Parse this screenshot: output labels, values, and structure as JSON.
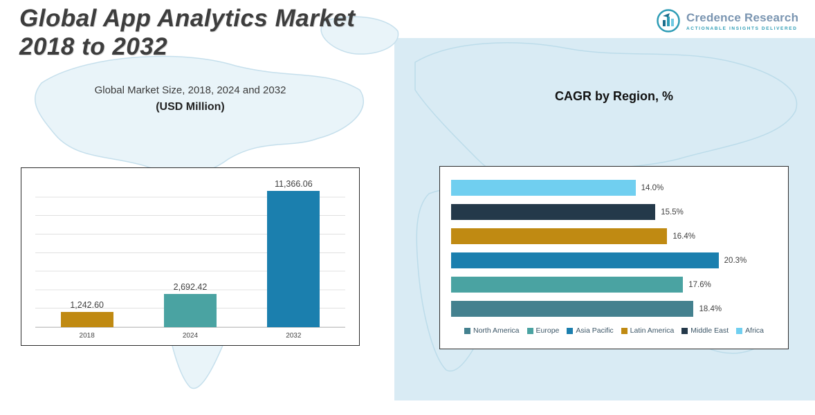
{
  "page": {
    "title_line1": "Global App Analytics Market",
    "title_line2": "2018 to 2032"
  },
  "logo": {
    "name": "Credence Research",
    "tagline": "Actionable Insights Delivered"
  },
  "colors": {
    "gold": "#c08a12",
    "teal": "#4aa3a2",
    "blue": "#1b7fae",
    "dark_navy": "#24394a",
    "steel_teal": "#44818f",
    "light_blue": "#70cff0",
    "map_fill": "#d9ebf4",
    "map_line": "#bcdcea"
  },
  "chart_data": [
    {
      "type": "bar",
      "title": "Global Market Size, 2018, 2024 and 2032",
      "subtitle": "(USD Million)",
      "categories": [
        "2018",
        "2024",
        "2032"
      ],
      "values": [
        1242.6,
        2692.42,
        11366.06
      ],
      "value_labels": [
        "1,242.60",
        "2,692.42",
        "11,366.06"
      ],
      "bar_colors": [
        "#c08a12",
        "#4aa3a2",
        "#1b7fae"
      ],
      "xlabel": "",
      "ylabel": "",
      "ylim": [
        0,
        12000
      ],
      "grid": true,
      "legend_position": "none"
    },
    {
      "type": "bar",
      "orientation": "horizontal",
      "title": "CAGR by Region, %",
      "categories_top_to_bottom": [
        "Africa",
        "Middle East",
        "Latin America",
        "Asia Pacific",
        "Europe",
        "North America"
      ],
      "values_top_to_bottom": [
        14.0,
        15.5,
        16.4,
        20.3,
        17.6,
        18.4
      ],
      "value_labels_top_to_bottom": [
        "14.0%",
        "15.5%",
        "16.4%",
        "20.3%",
        "17.6%",
        "18.4%"
      ],
      "bar_colors_top_to_bottom": [
        "#70cff0",
        "#24394a",
        "#c08a12",
        "#1b7fae",
        "#4aa3a2",
        "#44818f"
      ],
      "xlim": [
        0,
        21
      ],
      "grid": false,
      "legend_position": "bottom",
      "legend": [
        {
          "label": "North America",
          "color": "#44818f"
        },
        {
          "label": "Europe",
          "color": "#4aa3a2"
        },
        {
          "label": "Asia Pacific",
          "color": "#1b7fae"
        },
        {
          "label": "Latin America",
          "color": "#c08a12"
        },
        {
          "label": "Middle East",
          "color": "#24394a"
        },
        {
          "label": "Africa",
          "color": "#70cff0"
        }
      ]
    }
  ]
}
